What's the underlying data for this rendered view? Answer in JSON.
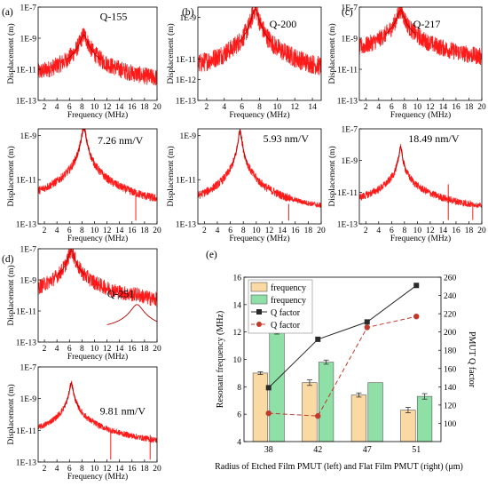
{
  "colors": {
    "spectrum": "#ff1a1a",
    "peak": "#b30000",
    "bar_etched": "#fad9a3",
    "bar_flat": "#8fe0a6",
    "q_etched": "#2b2b2b",
    "q_flat": "#c0392b"
  },
  "chart_data": [
    {
      "id": "a1",
      "panel_label": "(a)",
      "type": "line",
      "xlabel": "Frequency (MHz)",
      "ylabel": "Displacement (m)",
      "x_ticks": [
        "2",
        "4",
        "6",
        "8",
        "10",
        "12",
        "14",
        "16",
        "18",
        "20"
      ],
      "xlim": [
        1,
        20
      ],
      "y_ticks": [
        "1E-7",
        "1E-9",
        "1E-11",
        "1E-13"
      ],
      "y_tick_exps": [
        -7,
        -9,
        -11,
        -13
      ],
      "ylim_exp": [
        -13,
        -7
      ],
      "annotation": "Q-155",
      "peaks": [
        {
          "x": 8.3,
          "y_exp": -8.8,
          "width": 0.45
        }
      ],
      "floor_exp": -12.6,
      "noise": 0.35
    },
    {
      "id": "b1",
      "panel_label": "(b)",
      "type": "line",
      "xlabel": "Frequency (MHz)",
      "ylabel": "Displacement (m)",
      "x_ticks": [
        "2",
        "4",
        "6",
        "8",
        "10",
        "12",
        "14"
      ],
      "xlim": [
        1,
        15
      ],
      "y_ticks": [
        "1E-9",
        "1E-11",
        "1E-12",
        "1E-13"
      ],
      "y_tick_exps": [
        -9,
        -11,
        -12,
        -13
      ],
      "ylim_exp": [
        -13,
        -8.5
      ],
      "annotation": "Q-200",
      "peaks": [
        {
          "x": 7.5,
          "y_exp": -8.6,
          "width": 0.3
        }
      ],
      "floor_exp": -12.6,
      "noise": 0.3
    },
    {
      "id": "c1",
      "panel_label": "(c)",
      "type": "line",
      "xlabel": "Frequency (MHz)",
      "ylabel": "Displacement (m)",
      "x_ticks": [
        "2",
        "4",
        "6",
        "8",
        "10",
        "12",
        "14",
        "16",
        "18",
        "20"
      ],
      "xlim": [
        1,
        20
      ],
      "y_ticks": [
        "1E-7",
        "1E-9",
        "1E-11",
        "1E-13"
      ],
      "y_tick_exps": [
        -7,
        -9,
        -11,
        -13
      ],
      "ylim_exp": [
        -13,
        -7
      ],
      "annotation": "Q-217",
      "peaks": [
        {
          "x": 7.4,
          "y_exp": -7.2,
          "width": 0.4
        }
      ],
      "floor_exp": -12.6,
      "noise": 0.35
    },
    {
      "id": "a2",
      "panel_label": "",
      "type": "line",
      "xlabel": "Frequency (MHz)",
      "ylabel": "Displacement (m)",
      "x_ticks": [
        "2",
        "4",
        "6",
        "8",
        "10",
        "12",
        "14",
        "16",
        "18",
        "20"
      ],
      "xlim": [
        1,
        20
      ],
      "y_ticks": [
        "1E-9",
        "1E-11",
        "1E-13"
      ],
      "y_tick_exps": [
        -9,
        -11,
        -13
      ],
      "ylim_exp": [
        -13,
        -8.7
      ],
      "annotation": "7.26 nm/V",
      "peaks": [
        {
          "x": 8.3,
          "y_exp": -8.6,
          "width": 0.25
        }
      ],
      "spikes": [
        {
          "x": 16.6,
          "y_exp": -11.5
        }
      ],
      "floor_exp": -12.85,
      "noise": 0.12
    },
    {
      "id": "b2",
      "panel_label": "",
      "type": "line",
      "xlabel": "Frequency (MHz)",
      "ylabel": "Displacement (m)",
      "x_ticks": [
        "2",
        "4",
        "6",
        "8",
        "10",
        "12",
        "14",
        "16",
        "18",
        "20"
      ],
      "xlim": [
        1,
        20
      ],
      "y_ticks": [
        "1E-9",
        "1E-11",
        "1E-13"
      ],
      "y_tick_exps": [
        -9,
        -11,
        -13
      ],
      "ylim_exp": [
        -13,
        -8.7
      ],
      "annotation": "5.93 nm/V",
      "peaks": [
        {
          "x": 7.5,
          "y_exp": -8.75,
          "width": 0.2
        }
      ],
      "spikes": [
        {
          "x": 15.0,
          "y_exp": -12.1
        }
      ],
      "floor_exp": -12.85,
      "noise": 0.12
    },
    {
      "id": "c2",
      "panel_label": "",
      "type": "line",
      "xlabel": "Frequency (MHz)",
      "ylabel": "Displacement (m)",
      "x_ticks": [
        "2",
        "4",
        "6",
        "8",
        "10",
        "12",
        "14",
        "16",
        "18",
        "20"
      ],
      "xlim": [
        1,
        20
      ],
      "y_ticks": [
        "1E-7",
        "1E-9",
        "1E-11",
        "1E-13"
      ],
      "y_tick_exps": [
        -7,
        -9,
        -11,
        -13
      ],
      "ylim_exp": [
        -13,
        -7
      ],
      "annotation": "18.49 nm/V",
      "peaks": [
        {
          "x": 7.4,
          "y_exp": -8.1,
          "width": 0.15
        }
      ],
      "spikes": [
        {
          "x": 14.8,
          "y_exp": -10.5
        },
        {
          "x": 18.6,
          "y_exp": -11.7
        }
      ],
      "floor_exp": -12.75,
      "noise": 0.15
    },
    {
      "id": "d1",
      "panel_label": "(d)",
      "type": "line",
      "xlabel": "Frequency (MHz)",
      "ylabel": "Displacement (m)",
      "x_ticks": [
        "2",
        "4",
        "6",
        "8",
        "10",
        "12",
        "14",
        "16",
        "18",
        "20"
      ],
      "xlim": [
        1,
        20
      ],
      "y_ticks": [
        "1E-7",
        "1E-9",
        "1E-11",
        "1E-13"
      ],
      "y_tick_exps": [
        -7,
        -9,
        -11,
        -13
      ],
      "ylim_exp": [
        -13,
        -7
      ],
      "annotation": "Q-251",
      "peaks": [
        {
          "x": 6.3,
          "y_exp": -7.1,
          "width": 0.35
        },
        {
          "x": 16.8,
          "y_exp": -10.6,
          "width": 0.8
        }
      ],
      "floor_exp": -12.4,
      "noise": 0.3
    },
    {
      "id": "d2",
      "panel_label": "",
      "type": "line",
      "xlabel": "Frequency (MHz)",
      "ylabel": "Displacement (m)",
      "x_ticks": [
        "2",
        "4",
        "6",
        "8",
        "10",
        "12",
        "14",
        "16",
        "18",
        "20"
      ],
      "xlim": [
        1,
        20
      ],
      "y_ticks": [
        "1E-7",
        "1E-9",
        "1E-11",
        "1E-13"
      ],
      "y_tick_exps": [
        -7,
        -9,
        -11,
        -13
      ],
      "ylim_exp": [
        -13,
        -7
      ],
      "annotation": "9.81 nm/V",
      "peaks": [
        {
          "x": 6.3,
          "y_exp": -8.0,
          "width": 0.2
        }
      ],
      "spikes": [
        {
          "x": 12.6,
          "y_exp": -11.0
        },
        {
          "x": 18.9,
          "y_exp": -11.3
        }
      ],
      "floor_exp": -12.85,
      "noise": 0.12
    },
    {
      "id": "e",
      "panel_label": "(e)",
      "type": "bar",
      "categories": [
        "38",
        "42",
        "47",
        "51"
      ],
      "xlabel": "Radius of Etched Film PMUT (left) and Flat Film PMUT (right) (μm)",
      "ylabel": "Resonant frequency (MHz)",
      "y2label": "PMUT Q factor",
      "ylim": [
        4,
        16
      ],
      "y_ticks": [
        4,
        6,
        8,
        10,
        12,
        14,
        16
      ],
      "y2lim": [
        80,
        260
      ],
      "y2_ticks": [
        100,
        120,
        140,
        160,
        180,
        200,
        220,
        240,
        260
      ],
      "series": [
        {
          "name": "frequency",
          "values": [
            9.0,
            8.3,
            7.4,
            6.3
          ],
          "errors": [
            0.1,
            0.2,
            0.15,
            0.2
          ]
        },
        {
          "name": "frequency",
          "values": [
            12.0,
            9.8,
            8.3,
            7.3
          ],
          "errors": [
            0.15,
            0.15,
            0.0,
            0.2
          ]
        }
      ],
      "q_series": [
        {
          "name": "Q factor",
          "values": [
            139,
            192,
            211,
            251
          ]
        },
        {
          "name": "Q factor",
          "values": [
            111,
            108,
            205,
            217
          ]
        }
      ]
    }
  ]
}
